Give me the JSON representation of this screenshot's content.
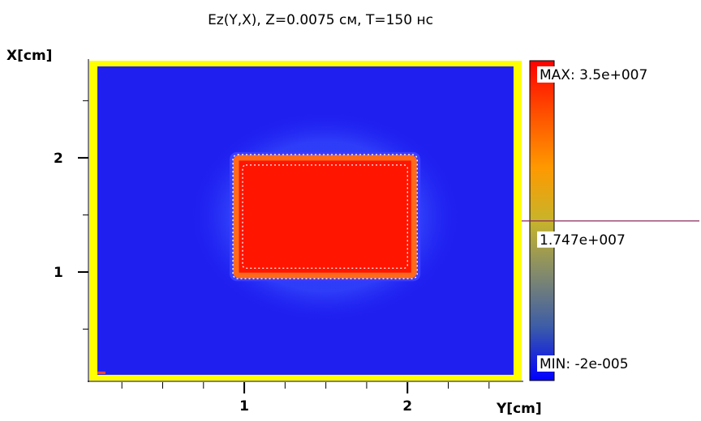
{
  "chart_data": {
    "type": "heatmap",
    "title": "Ez(Y,X), Z=0.0075 см, T=150 нс",
    "xlabel": "Y[cm]",
    "ylabel": "X[cm]",
    "xlim": [
      0.05,
      2.7
    ],
    "ylim": [
      0.05,
      2.85
    ],
    "x_ticks": [
      1,
      2
    ],
    "y_ticks": [
      1,
      2
    ],
    "x_minor_step": 0.25,
    "y_minor_step": 0.5,
    "grid": false,
    "domain": {
      "y_range": [
        0.1,
        2.65
      ],
      "x_range": [
        0.1,
        2.8
      ]
    },
    "high_region": {
      "y_range": [
        0.95,
        2.04
      ],
      "x_range": [
        0.97,
        2.0
      ],
      "value": 35000000
    },
    "colorbar": {
      "max_label": "MAX: 3.5e+007",
      "mid_label": "1.747e+007",
      "min_label": "MIN: -2e-005",
      "max": 35000000,
      "mid": 17470000,
      "min": -2e-05,
      "colors": [
        "#0000ff",
        "#3c5ca8",
        "#828a6c",
        "#c8b42a",
        "#ff9900",
        "#ff5000",
        "#ff0000"
      ]
    },
    "background_color": "#1f1ff0",
    "border_color": "#ffff00",
    "high_color": "#ff1500",
    "edge_color": "#ff6a1a"
  }
}
